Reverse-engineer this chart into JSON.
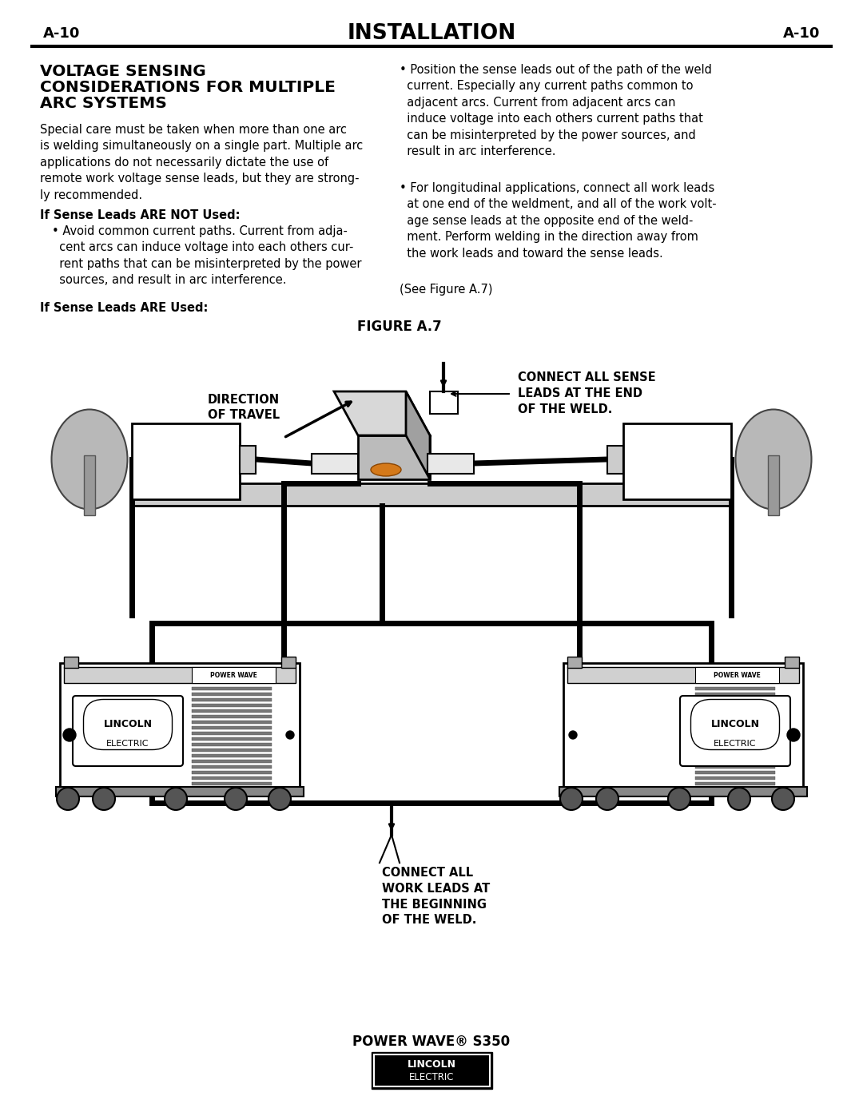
{
  "page_label_left": "A-10",
  "page_label_right": "A-10",
  "header_title": "INSTALLATION",
  "section_title_line1": "VOLTAGE SENSING",
  "section_title_line2": "CONSIDERATIONS FOR MULTIPLE",
  "section_title_line3": "ARC SYSTEMS",
  "figure_label": "FIGURE A.7",
  "annotation_sense": "CONNECT ALL SENSE\nLEADS AT THE END\nOF THE WELD.",
  "annotation_travel": "DIRECTION\nOF TRAVEL",
  "annotation_work": "CONNECT ALL\nWORK LEADS AT\nTHE BEGINNING\nOF THE WELD.",
  "footer_text": "POWER WAVE® S350",
  "bg_color": "#ffffff",
  "text_color": "#000000"
}
